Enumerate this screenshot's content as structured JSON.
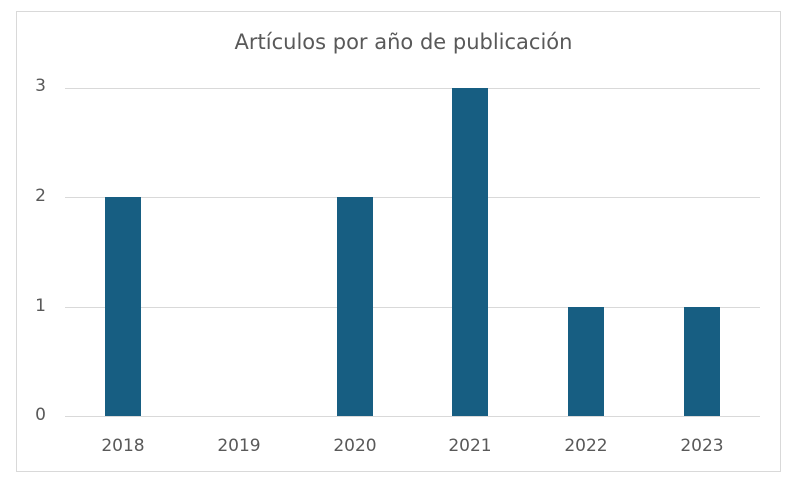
{
  "chart_data": {
    "type": "bar",
    "title": "Artículos por año de publicación",
    "categories": [
      "2018",
      "2019",
      "2020",
      "2021",
      "2022",
      "2023"
    ],
    "values": [
      2,
      0,
      2,
      3,
      1,
      1
    ],
    "xlabel": "",
    "ylabel": "",
    "ylim": [
      0,
      3
    ],
    "yticks": [
      "0",
      "1",
      "2",
      "3"
    ],
    "grid": true,
    "legend": "none",
    "bar_color": "#175e82"
  }
}
